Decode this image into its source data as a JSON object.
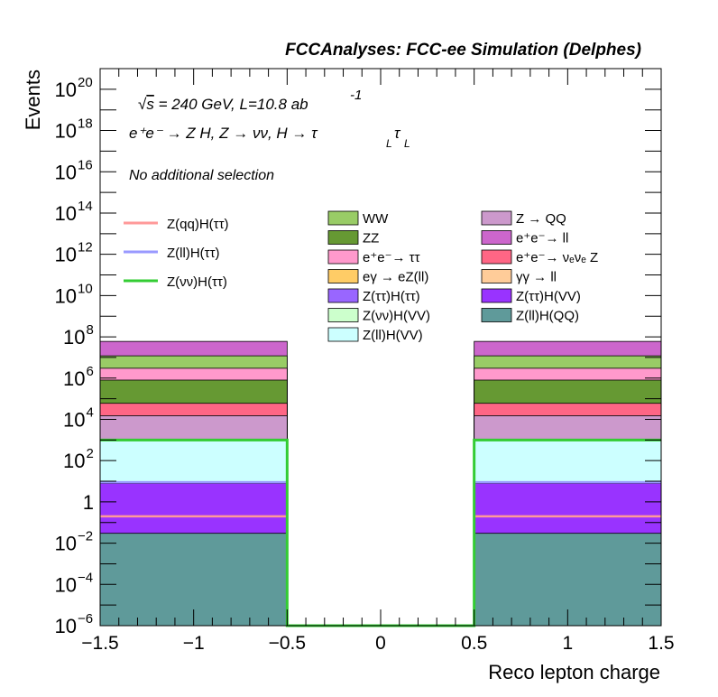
{
  "chart_data": {
    "type": "bar",
    "title": "FCCAnalyses: FCC-ee Simulation (Delphes)",
    "xlabel": "Reco lepton charge",
    "ylabel": "Events",
    "xlim": [
      -1.5,
      1.5
    ],
    "ylim_log10": [
      -6,
      21
    ],
    "log_y": true,
    "x_ticks": [
      "−1.5",
      "−1",
      "−0.5",
      "0",
      "0.5",
      "1",
      "1.5"
    ],
    "y_ticks": [
      {
        "exp": -6,
        "base": "10",
        "sup": "−6"
      },
      {
        "exp": -4,
        "base": "10",
        "sup": "−4"
      },
      {
        "exp": -2,
        "base": "10",
        "sup": "−2"
      },
      {
        "exp": 0,
        "base": "1",
        "sup": ""
      },
      {
        "exp": 2,
        "base": "10",
        "sup": "2"
      },
      {
        "exp": 4,
        "base": "10",
        "sup": "4"
      },
      {
        "exp": 6,
        "base": "10",
        "sup": "6"
      },
      {
        "exp": 8,
        "base": "10",
        "sup": "8"
      },
      {
        "exp": 10,
        "base": "10",
        "sup": "10"
      },
      {
        "exp": 12,
        "base": "10",
        "sup": "12"
      },
      {
        "exp": 14,
        "base": "10",
        "sup": "14"
      },
      {
        "exp": 16,
        "base": "10",
        "sup": "16"
      },
      {
        "exp": 18,
        "base": "10",
        "sup": "18"
      },
      {
        "exp": 20,
        "base": "10",
        "sup": "20"
      }
    ],
    "annotations": {
      "energy_sqrt": "s",
      "energy_rest": " = 240 GeV, L=10.8 ab",
      "energy_sup": "-1",
      "process": "e⁺e⁻ → Z H, Z → νν, H → τ",
      "process_sub1": "L",
      "process_tau2": "τ",
      "process_sub2": "L",
      "selection": "No additional selection"
    },
    "bins": [
      [
        -1.5,
        -0.5
      ],
      [
        0.5,
        1.5
      ]
    ],
    "stack": [
      {
        "name": "Z(ll)H(QQ)",
        "color": "#5f9a9a",
        "top": [
          0.03,
          0.03
        ]
      },
      {
        "name": "Z(ττ)H(VV)",
        "color": "#9933ff",
        "top": [
          8,
          8
        ]
      },
      {
        "name": "Z(ll)H(VV)",
        "color": "#ccffff",
        "top": [
          1000,
          1000
        ]
      },
      {
        "name": "Z → QQ",
        "color": "#cc99cc",
        "top": [
          15000,
          15000
        ]
      },
      {
        "name": "e⁺e⁻→ νₑνₑ Z",
        "color": "#ff6685",
        "top": [
          60000,
          60000
        ]
      },
      {
        "name": "ZZ",
        "color": "#669933",
        "top": [
          800000,
          800000
        ]
      },
      {
        "name": "e⁺e⁻→ ττ",
        "color": "#ff99cc",
        "top": [
          3000000,
          3000000
        ]
      },
      {
        "name": "WW",
        "color": "#99cc66",
        "top": [
          12000000,
          12000000
        ]
      },
      {
        "name": "e⁺e⁻→ ll",
        "color": "#cc66cc",
        "top": [
          60000000,
          60000000
        ]
      }
    ],
    "overlay_lines": [
      {
        "name": "Z(qq)H(ττ)",
        "color": "#ff9999",
        "values": [
          0.2,
          0.2
        ]
      },
      {
        "name": "Z(ll)H(ττ)",
        "color": "#9999ff",
        "values": [
          9,
          9
        ]
      },
      {
        "name": "Z(νν)H(ττ)",
        "color": "#33cc33",
        "values": [
          1000,
          1000
        ]
      }
    ],
    "legend": {
      "lines": [
        {
          "label": "Z(qq)H(ττ)",
          "color": "#ff9999"
        },
        {
          "label": "Z(ll)H(ττ)",
          "color": "#9999ff"
        },
        {
          "label": "Z(νν)H(ττ)",
          "color": "#33cc33"
        }
      ],
      "col1": [
        {
          "label": "WW",
          "color": "#99cc66"
        },
        {
          "label": "ZZ",
          "color": "#669933"
        },
        {
          "label": "e⁺e⁻→ ττ",
          "color": "#ff99cc"
        },
        {
          "label": "eγ → eZ(ll)",
          "color": "#ffcc66"
        },
        {
          "label": "Z(ττ)H(ττ)",
          "color": "#9966ff"
        },
        {
          "label": "Z(νν)H(VV)",
          "color": "#ccffcc"
        },
        {
          "label": "Z(ll)H(VV)",
          "color": "#ccffff"
        }
      ],
      "col2": [
        {
          "label": "Z → QQ",
          "color": "#cc99cc"
        },
        {
          "label": "e⁺e⁻→ ll",
          "color": "#cc66cc"
        },
        {
          "label": "e⁺e⁻→ νₑνₑ Z",
          "color": "#ff6685"
        },
        {
          "label": "γγ → ll",
          "color": "#ffcc99"
        },
        {
          "label": "Z(ττ)H(VV)",
          "color": "#9933ff"
        },
        {
          "label": "Z(ll)H(QQ)",
          "color": "#5f9a9a"
        }
      ]
    }
  }
}
